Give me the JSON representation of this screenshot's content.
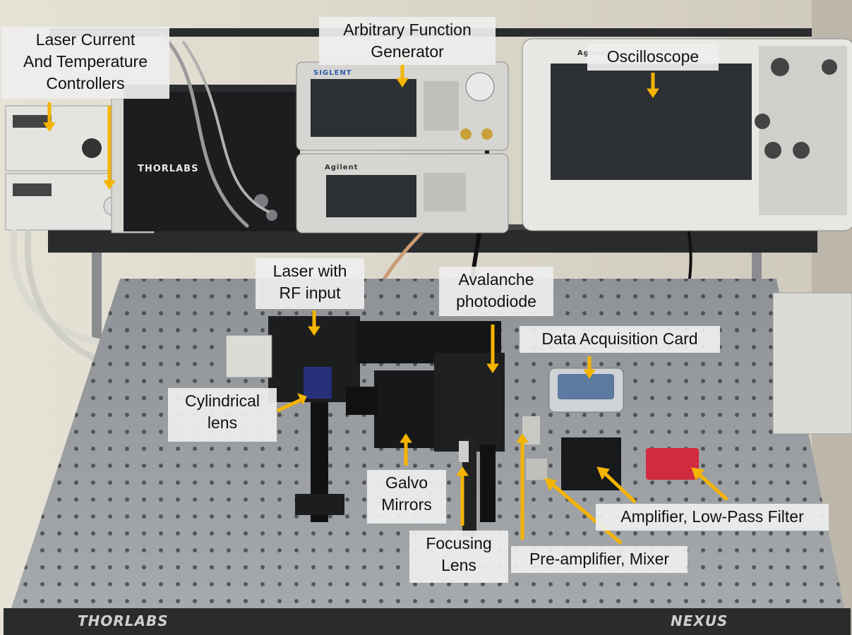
{
  "labels": {
    "laser_controllers": "Laser Current\nAnd Temperature\nControllers",
    "function_generator": "Arbitrary Function\nGenerator",
    "oscilloscope": "Oscilloscope",
    "laser_rf": "Laser with\nRF input",
    "avalanche_photodiode": "Avalanche\nphotodiode",
    "daq_card": "Data Acquisition Card",
    "cylindrical_lens": "Cylindrical\nlens",
    "galvo_mirrors": "Galvo\nMirrors",
    "focusing_lens": "Focusing\nLens",
    "amplifier_filter": "Amplifier, Low-Pass Filter",
    "preamp_mixer": "Pre-amplifier, Mixer"
  },
  "brands": {
    "table_left": "THORLABS",
    "table_right": "NEXUS",
    "controller_box": "THORLABS",
    "generator_top": "SIGLENT",
    "generator_bottom": "Agilent",
    "scope": "Agilent"
  },
  "colors": {
    "arrow": "#f5b400",
    "label_bg": "#eeeeee",
    "optical_table": "#9a9da0",
    "shelf": "#2a2b2d"
  }
}
